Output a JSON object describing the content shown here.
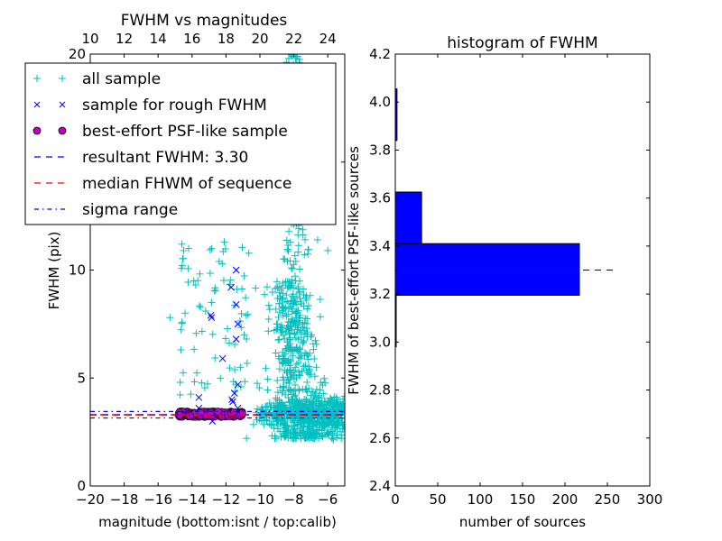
{
  "chart_data": [
    {
      "type": "scatter",
      "title": "FWHM vs magnitudes",
      "xlabel": "magnitude (bottom:isnt / top:calib)",
      "ylabel": "FWHM (pix)",
      "xlim": [
        -20,
        -5
      ],
      "ylim": [
        0,
        20
      ],
      "x_ticks": [
        -20,
        -18,
        -16,
        -14,
        -12,
        -10,
        -8,
        -6
      ],
      "x_tick_labels": [
        "−20",
        "−18",
        "−16",
        "−14",
        "−12",
        "−10",
        "−8",
        "−6"
      ],
      "y_ticks": [
        0,
        5,
        10,
        15,
        20
      ],
      "y_tick_labels": [
        "0",
        "5",
        "10",
        "15",
        "20"
      ],
      "top_axis_offset": 30,
      "top_ticks": [
        10,
        12,
        14,
        16,
        18,
        20,
        22,
        24
      ],
      "top_tick_labels": [
        "10",
        "12",
        "14",
        "16",
        "18",
        "20",
        "22",
        "24"
      ],
      "legend_position": "upper-left",
      "legend": [
        {
          "label": "all sample",
          "marker": "plus",
          "color": "#00bfbf"
        },
        {
          "label": "sample for rough FWHM",
          "marker": "x",
          "color": "#0000ff"
        },
        {
          "label": "best-effort PSF-like sample",
          "marker": "circle",
          "color": "#bf00bf"
        },
        {
          "label": "resultant FWHM: 3.30",
          "marker": "dashed",
          "color": "#0000ff"
        },
        {
          "label": "median FHWM of sequence",
          "marker": "dashed",
          "color": "#ff0000"
        },
        {
          "label": "sigma range",
          "marker": "dashdot",
          "color": "#0000ff"
        }
      ],
      "resultant_fwhm": 3.3,
      "median_fwhm": 3.3,
      "sigma_range": [
        3.15,
        3.45
      ],
      "series": [
        {
          "name": "all sample",
          "color": "#00bfbf",
          "clusters": [
            {
              "x_range": [
                -8.8,
                -6.2
              ],
              "y_range": [
                2.2,
                9.5
              ],
              "count": 520,
              "peak_x": -7.8
            },
            {
              "x_range": [
                -10.5,
                -5.0
              ],
              "y_range": [
                2.6,
                4.2
              ],
              "count": 420
            },
            {
              "x_range": [
                -9.0,
                -7.0
              ],
              "y_range": [
                8.0,
                20.0
              ],
              "count": 150
            },
            {
              "x_range": [
                -14.8,
                -10.5
              ],
              "y_range": [
                4.2,
                11.5
              ],
              "count": 70
            }
          ],
          "points": [
            [
              -15.3,
              7.8
            ],
            [
              -14.6,
              11.2
            ],
            [
              -14.5,
              10.9
            ],
            [
              -14.2,
              11.0
            ],
            [
              -13.9,
              9.5
            ],
            [
              -12.4,
              10.4
            ],
            [
              -12.1,
              11.3
            ],
            [
              -13.2,
              8.1
            ],
            [
              -14.7,
              4.8
            ],
            [
              -6.0,
              10.9
            ],
            [
              -6.6,
              11.4
            ],
            [
              -8.3,
              19.8
            ],
            [
              -8.1,
              19.9
            ],
            [
              -7.9,
              19.8
            ],
            [
              -8.2,
              20.0
            ]
          ]
        },
        {
          "name": "sample for rough FWHM",
          "color": "#0000ff",
          "points": [
            [
              -11.4,
              10.0
            ],
            [
              -11.7,
              9.2
            ],
            [
              -11.4,
              8.4
            ],
            [
              -12.9,
              7.9
            ],
            [
              -12.85,
              7.8
            ],
            [
              -11.3,
              7.5
            ],
            [
              -11.4,
              6.8
            ],
            [
              -12.2,
              5.9
            ],
            [
              -11.3,
              4.7
            ],
            [
              -11.5,
              4.3
            ],
            [
              -11.65,
              4.0
            ],
            [
              -11.6,
              3.9
            ],
            [
              -13.6,
              4.1
            ],
            [
              -13.6,
              3.6
            ],
            [
              -12.8,
              3.0
            ],
            [
              -11.3,
              3.6
            ],
            [
              -14.4,
              3.4
            ],
            [
              -12.0,
              3.3
            ]
          ]
        },
        {
          "name": "best-effort PSF-like sample",
          "color": "#bf00bf",
          "x_range": [
            -14.8,
            -11.0
          ],
          "y_range": [
            3.2,
            3.45
          ],
          "count": 217
        }
      ]
    },
    {
      "type": "bar",
      "orientation": "horizontal",
      "title": "histogram of FWHM",
      "xlabel": "number of sources",
      "ylabel": "FWHM of best-effort PSF-like sources",
      "xlim": [
        0,
        300
      ],
      "ylim": [
        2.4,
        4.2
      ],
      "x_ticks": [
        0,
        50,
        100,
        150,
        200,
        250,
        300
      ],
      "x_tick_labels": [
        "0",
        "50",
        "100",
        "150",
        "200",
        "250",
        "300"
      ],
      "y_ticks": [
        2.4,
        2.6,
        2.8,
        3.0,
        3.2,
        3.4,
        3.6,
        3.8,
        4.0,
        4.2
      ],
      "y_tick_labels": [
        "2.4",
        "2.6",
        "2.8",
        "3.0",
        "3.2",
        "3.4",
        "3.6",
        "3.8",
        "4.0",
        "4.2"
      ],
      "bar_color": "#0000ff",
      "bins": [
        {
          "from": 2.98,
          "to": 3.195,
          "count": 1
        },
        {
          "from": 3.195,
          "to": 3.41,
          "count": 217
        },
        {
          "from": 3.41,
          "to": 3.625,
          "count": 31
        },
        {
          "from": 3.625,
          "to": 3.84,
          "count": 0
        },
        {
          "from": 3.84,
          "to": 4.055,
          "count": 2
        }
      ],
      "reference_line": {
        "y": 3.3,
        "x_to": 260,
        "style": "dashed",
        "color": "#000000"
      }
    }
  ]
}
